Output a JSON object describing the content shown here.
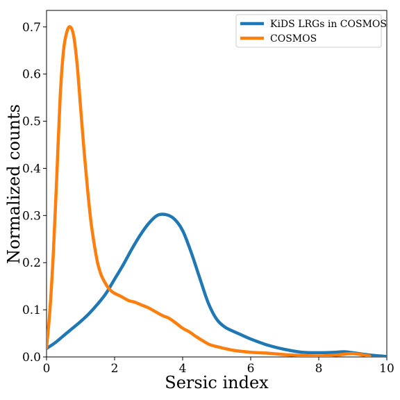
{
  "chart_data": {
    "type": "line",
    "xlabel": "Sersic index",
    "ylabel": "Normalized counts",
    "xlim": [
      0,
      10
    ],
    "ylim": [
      0,
      0.735
    ],
    "x_ticks": [
      0,
      2,
      4,
      6,
      8,
      10
    ],
    "x_tick_labels": [
      "0",
      "2",
      "4",
      "6",
      "8",
      "10"
    ],
    "y_ticks": [
      0.0,
      0.1,
      0.2,
      0.3,
      0.4,
      0.5,
      0.6,
      0.7
    ],
    "y_tick_labels": [
      "0.0",
      "0.1",
      "0.2",
      "0.3",
      "0.4",
      "0.5",
      "0.6",
      "0.7"
    ],
    "grid": false,
    "legend_position": "top-right",
    "series": [
      {
        "name": "KiDS LRGs in COSMOS",
        "color": "#1f77b4",
        "x": [
          0,
          0.25,
          0.5,
          0.75,
          1.0,
          1.25,
          1.5,
          1.75,
          2.0,
          2.25,
          2.5,
          2.75,
          3.0,
          3.25,
          3.5,
          3.75,
          4.0,
          4.25,
          4.5,
          4.75,
          5.0,
          5.25,
          5.5,
          5.75,
          6.0,
          6.5,
          7.0,
          7.5,
          8.0,
          8.5,
          8.75,
          9.0,
          9.5,
          10.0
        ],
        "y": [
          0.018,
          0.03,
          0.045,
          0.06,
          0.075,
          0.092,
          0.112,
          0.135,
          0.165,
          0.195,
          0.228,
          0.258,
          0.283,
          0.3,
          0.302,
          0.293,
          0.268,
          0.222,
          0.168,
          0.115,
          0.08,
          0.063,
          0.054,
          0.046,
          0.038,
          0.025,
          0.016,
          0.01,
          0.009,
          0.01,
          0.011,
          0.009,
          0.004,
          0.001
        ]
      },
      {
        "name": "COSMOS",
        "color": "#ff7f0e",
        "x": [
          0,
          0.1,
          0.2,
          0.3,
          0.4,
          0.5,
          0.6,
          0.7,
          0.8,
          0.9,
          1.0,
          1.1,
          1.2,
          1.3,
          1.4,
          1.5,
          1.6,
          1.7,
          1.8,
          1.9,
          2.0,
          2.2,
          2.4,
          2.6,
          2.8,
          3.0,
          3.2,
          3.4,
          3.6,
          3.8,
          4.0,
          4.2,
          4.4,
          4.6,
          4.8,
          5.0,
          5.5,
          6.0,
          6.5,
          7.0,
          7.5,
          8.0,
          8.5,
          9.0,
          9.5
        ],
        "y": [
          0.02,
          0.1,
          0.22,
          0.38,
          0.55,
          0.65,
          0.69,
          0.7,
          0.68,
          0.62,
          0.53,
          0.44,
          0.36,
          0.29,
          0.24,
          0.2,
          0.175,
          0.16,
          0.148,
          0.14,
          0.135,
          0.128,
          0.12,
          0.116,
          0.11,
          0.104,
          0.096,
          0.088,
          0.082,
          0.072,
          0.061,
          0.053,
          0.043,
          0.034,
          0.026,
          0.022,
          0.014,
          0.01,
          0.008,
          0.005,
          0.003,
          0.002,
          0.004,
          0.007,
          0.002
        ]
      }
    ]
  }
}
